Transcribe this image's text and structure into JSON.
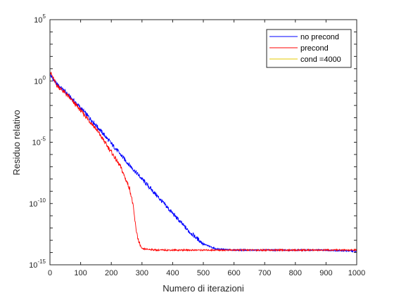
{
  "chart_data": {
    "type": "line",
    "title": "",
    "xlabel": "Numero di iterazioni",
    "ylabel": "Residuo relativo",
    "xlim": [
      0,
      1000
    ],
    "ylim": [
      1e-15,
      100000.0
    ],
    "yscale": "log",
    "x_ticks": [
      0,
      100,
      200,
      300,
      400,
      500,
      600,
      700,
      800,
      900,
      1000
    ],
    "x_tick_labels": [
      "0",
      "100",
      "200",
      "300",
      "400",
      "500",
      "600",
      "700",
      "800",
      "900",
      "1000"
    ],
    "y_ticks": [
      {
        "exp": 5,
        "base": "10",
        "sup": "5"
      },
      {
        "exp": 0,
        "base": "10",
        "sup": "0"
      },
      {
        "exp": -5,
        "base": "10",
        "sup": "-5"
      },
      {
        "exp": -10,
        "base": "10",
        "sup": "-10"
      },
      {
        "exp": -15,
        "base": "10",
        "sup": "-15"
      }
    ],
    "grid": false,
    "legend_position": "top-right",
    "series": [
      {
        "name": "no precond",
        "color": "#0000ff",
        "x": [
          0,
          20,
          50,
          100,
          150,
          200,
          250,
          300,
          350,
          400,
          450,
          500,
          540,
          600,
          700,
          800,
          900,
          1000
        ],
        "y_log10": [
          0.5,
          -0.2,
          -0.9,
          -2.2,
          -3.6,
          -5.1,
          -6.6,
          -8.0,
          -9.4,
          -10.8,
          -12.2,
          -13.3,
          -13.7,
          -13.8,
          -13.8,
          -13.8,
          -13.8,
          -13.9
        ]
      },
      {
        "name": "precond",
        "color": "#ff0000",
        "x": [
          0,
          20,
          50,
          100,
          150,
          200,
          230,
          250,
          260,
          270,
          280,
          290,
          300,
          350,
          400,
          500,
          600,
          700,
          800,
          900,
          1000
        ],
        "y_log10": [
          0.8,
          -0.3,
          -1.0,
          -2.4,
          -3.9,
          -5.8,
          -7.0,
          -8.2,
          -8.8,
          -10.0,
          -12.0,
          -13.2,
          -13.7,
          -13.8,
          -13.8,
          -13.8,
          -13.8,
          -13.8,
          -13.8,
          -13.8,
          -13.8
        ]
      },
      {
        "name": "cond =4000",
        "color": "#e6c800",
        "x": [],
        "y_log10": []
      }
    ]
  }
}
